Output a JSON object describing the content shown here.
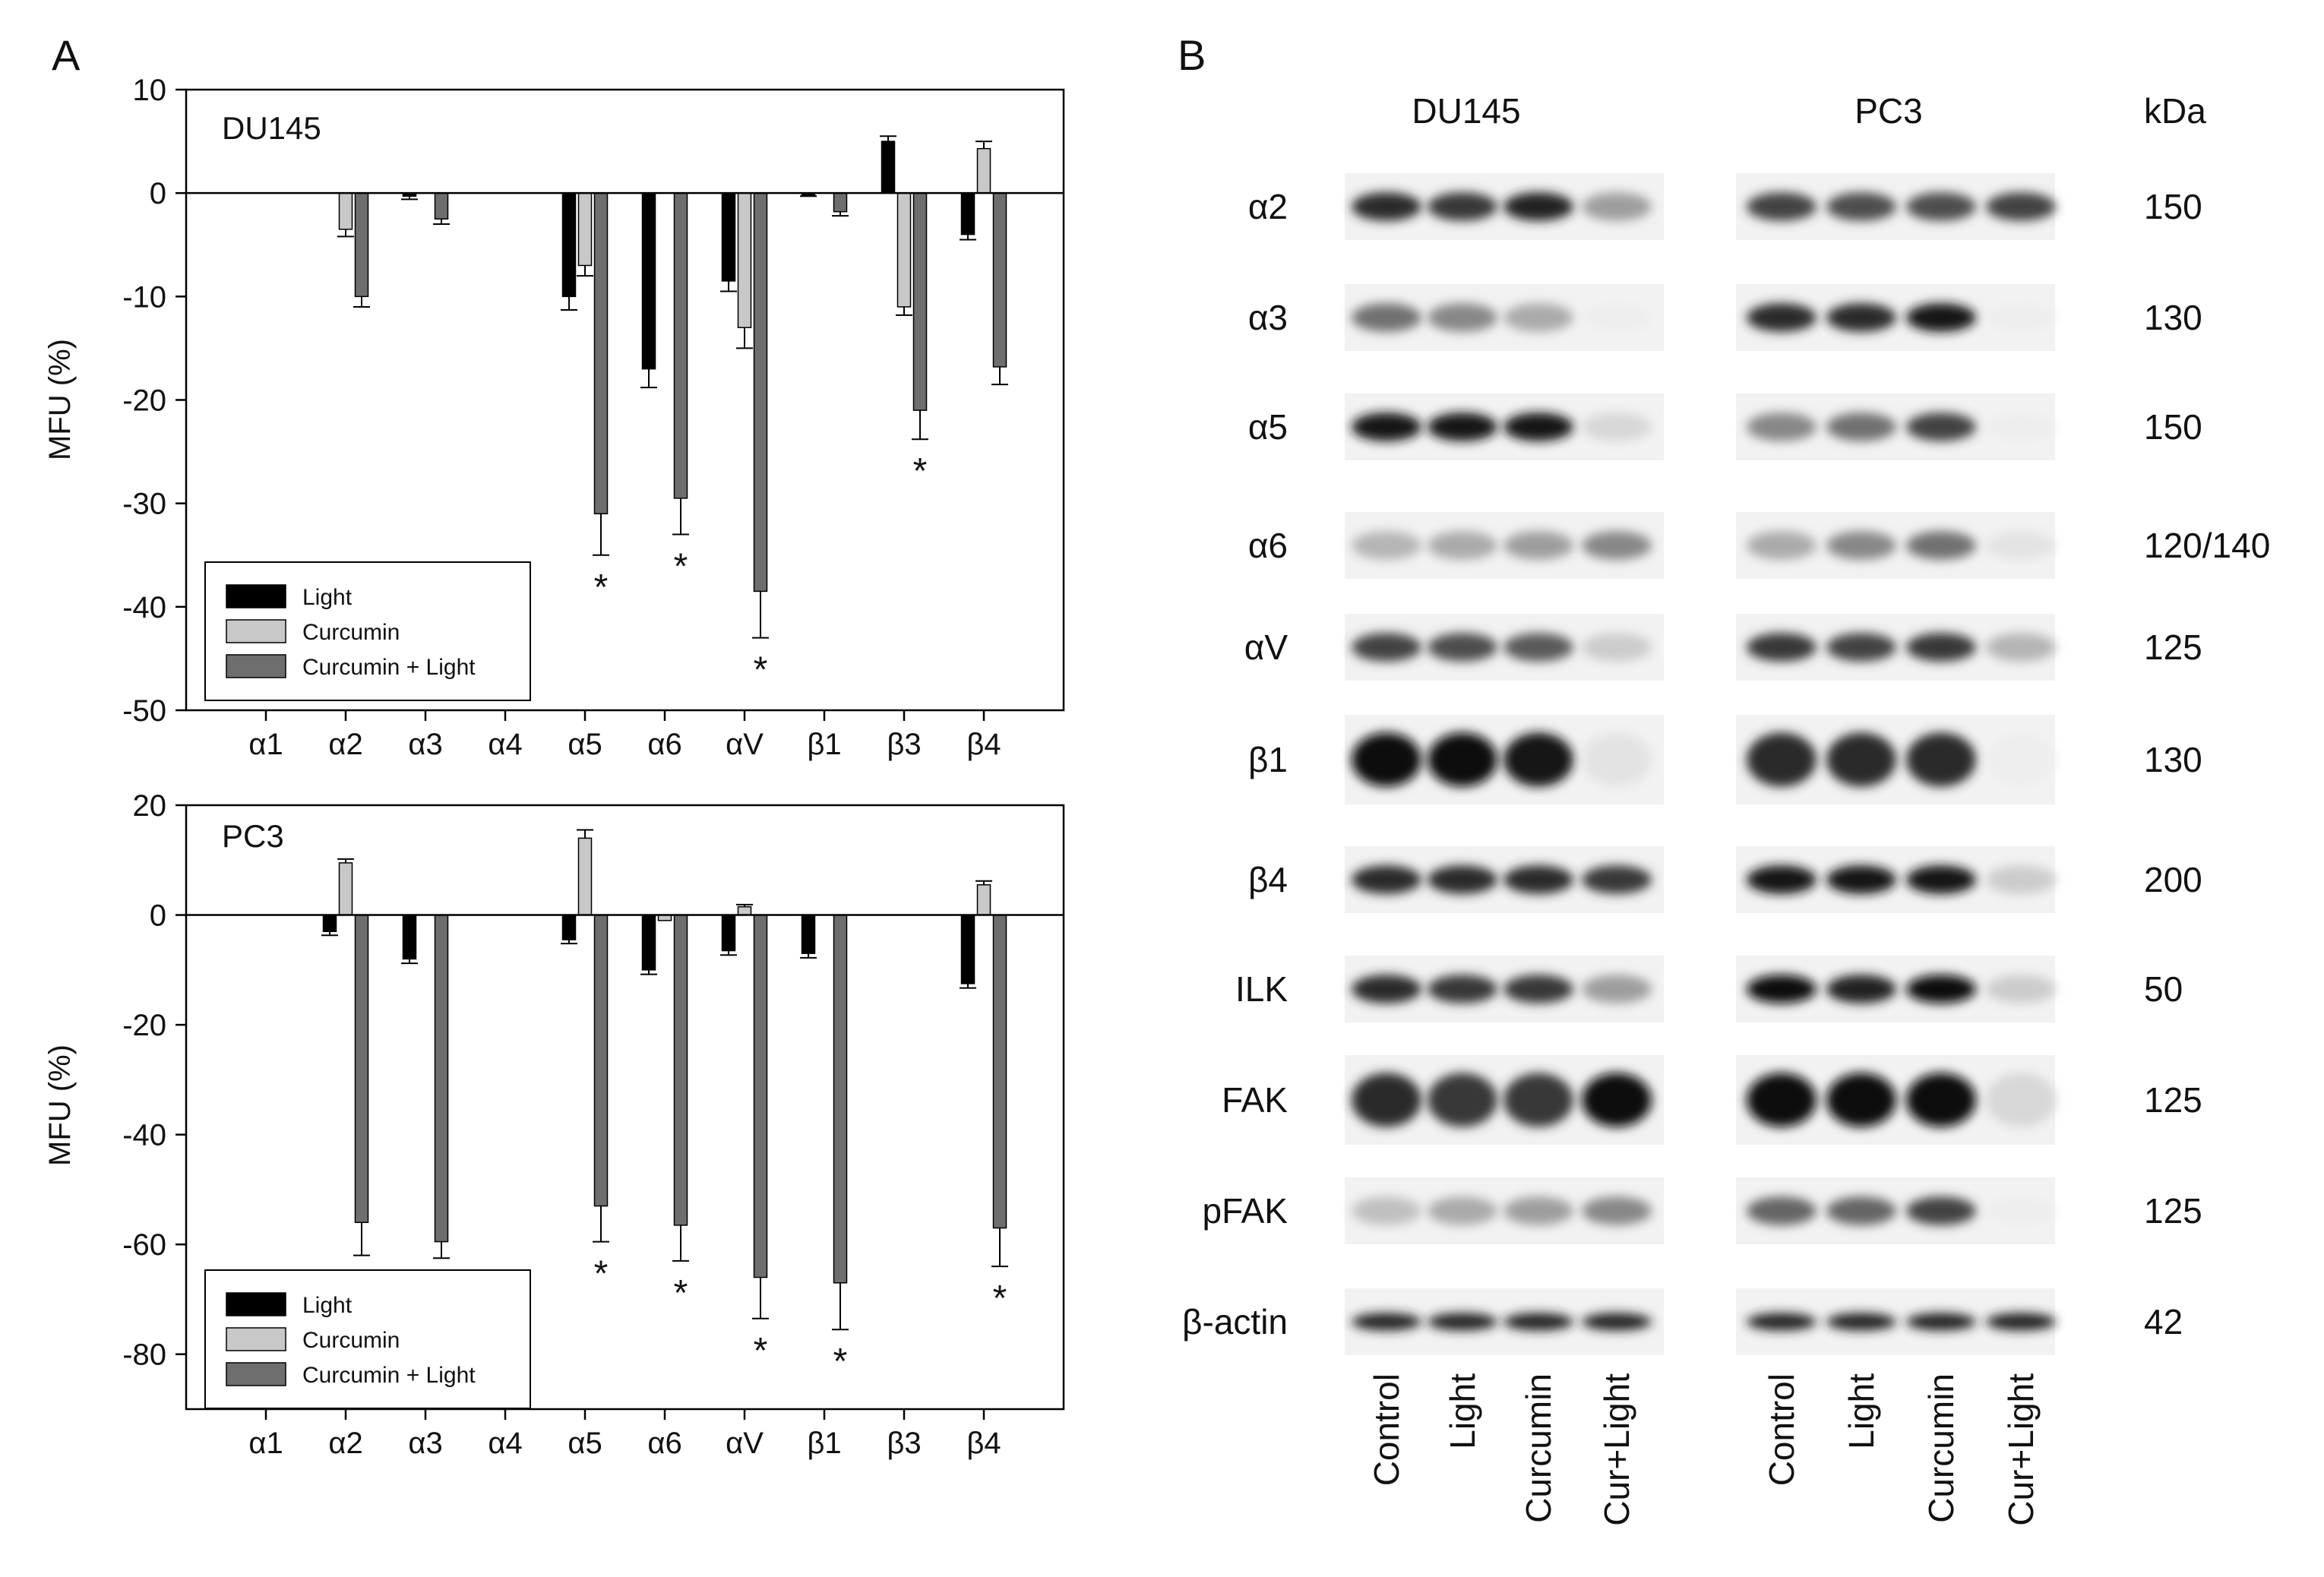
{
  "panel_labels": {
    "a": "A",
    "b": "B"
  },
  "chart_data": [
    {
      "type": "bar",
      "panel_title": "DU145",
      "ylabel": "MFU (%)",
      "ylim": [
        -50,
        10
      ],
      "yticks": [
        10,
        0,
        -10,
        -20,
        -30,
        -40,
        -50
      ],
      "categories": [
        "α1",
        "α2",
        "α3",
        "α4",
        "α5",
        "α6",
        "αV",
        "β1",
        "β3",
        "β4"
      ],
      "series": [
        {
          "name": "Light",
          "color": "#000000",
          "values": [
            0,
            0,
            -0.3,
            0,
            -10,
            -17,
            -8.5,
            -0.2,
            5,
            -4
          ],
          "errors": [
            0,
            0,
            0.3,
            0,
            1.3,
            1.8,
            1,
            0.1,
            0.5,
            0.5
          ]
        },
        {
          "name": "Curcumin",
          "color": "#c8c8c8",
          "values": [
            0,
            -3.5,
            0,
            0,
            -7,
            0,
            -13,
            0,
            -11,
            4.3
          ],
          "errors": [
            0,
            0.7,
            0,
            0,
            1,
            0,
            2,
            0,
            0.8,
            0.7
          ]
        },
        {
          "name": "Curcumin + Light",
          "color": "#6e6e6e",
          "values": [
            0,
            -10,
            -2.5,
            0,
            -31,
            -29.5,
            -38.5,
            -1.8,
            -21,
            -16.8
          ],
          "errors": [
            0,
            1,
            0.5,
            0,
            4,
            3.5,
            4.5,
            0.4,
            2.8,
            1.7
          ]
        }
      ],
      "significance": [
        {
          "category": "α5",
          "series": "Curcumin + Light",
          "label": "*"
        },
        {
          "category": "α6",
          "series": "Curcumin + Light",
          "label": "*"
        },
        {
          "category": "αV",
          "series": "Curcumin + Light",
          "label": "*"
        },
        {
          "category": "β3",
          "series": "Curcumin + Light",
          "label": "*"
        }
      ],
      "legend": {
        "position": "bottom-left"
      }
    },
    {
      "type": "bar",
      "panel_title": "PC3",
      "ylabel": "MFU (%)",
      "ylim": [
        -90,
        20
      ],
      "yticks": [
        20,
        0,
        -20,
        -40,
        -60,
        -80
      ],
      "categories": [
        "α1",
        "α2",
        "α3",
        "α4",
        "α5",
        "α6",
        "αV",
        "β1",
        "β3",
        "β4"
      ],
      "series": [
        {
          "name": "Light",
          "color": "#000000",
          "values": [
            0,
            -3,
            -8,
            0,
            -4.5,
            -10,
            -6.5,
            -7,
            0,
            -12.5
          ],
          "errors": [
            0,
            0.7,
            0.8,
            0,
            0.7,
            0.8,
            0.8,
            0.8,
            0,
            0.8
          ]
        },
        {
          "name": "Curcumin",
          "color": "#c8c8c8",
          "values": [
            0,
            9.5,
            0,
            0,
            14,
            -1,
            1.5,
            0,
            0,
            5.5
          ],
          "errors": [
            0,
            0.7,
            0,
            0,
            1.5,
            0,
            0.4,
            0,
            0,
            0.7
          ]
        },
        {
          "name": "Curcumin + Light",
          "color": "#6e6e6e",
          "values": [
            0,
            -56,
            -59.5,
            0,
            -53,
            -56.5,
            -66,
            -67,
            0,
            -57
          ],
          "errors": [
            0,
            6,
            3,
            0,
            6.5,
            6.5,
            7.5,
            8.5,
            0,
            7
          ]
        }
      ],
      "significance": [
        {
          "category": "α2",
          "series": "Curcumin + Light",
          "label": "*"
        },
        {
          "category": "α3",
          "series": "Curcumin + Light",
          "label": "*"
        },
        {
          "category": "α5",
          "series": "Curcumin + Light",
          "label": "*"
        },
        {
          "category": "α6",
          "series": "Curcumin + Light",
          "label": "*"
        },
        {
          "category": "αV",
          "series": "Curcumin + Light",
          "label": "*"
        },
        {
          "category": "β1",
          "series": "Curcumin + Light",
          "label": "*"
        },
        {
          "category": "β4",
          "series": "Curcumin + Light",
          "label": "*"
        }
      ],
      "legend": {
        "position": "bottom-left"
      }
    }
  ],
  "western_blot": {
    "cell_lines": [
      "DU145",
      "PC3"
    ],
    "kda_header": "kDa",
    "proteins": [
      {
        "name": "α2",
        "kda": "150",
        "intensity_du145": [
          0.85,
          0.8,
          0.9,
          0.35
        ],
        "intensity_pc3": [
          0.75,
          0.7,
          0.7,
          0.75
        ]
      },
      {
        "name": "α3",
        "kda": "130",
        "intensity_du145": [
          0.55,
          0.45,
          0.3,
          0
        ],
        "intensity_pc3": [
          0.85,
          0.85,
          0.95,
          0
        ]
      },
      {
        "name": "α5",
        "kda": "150",
        "intensity_du145": [
          0.95,
          0.95,
          0.95,
          0.1
        ],
        "intensity_pc3": [
          0.45,
          0.55,
          0.75,
          0
        ]
      },
      {
        "name": "α6",
        "kda": "120/140",
        "intensity_du145": [
          0.25,
          0.3,
          0.35,
          0.45
        ],
        "intensity_pc3": [
          0.3,
          0.45,
          0.55,
          0.05
        ]
      },
      {
        "name": "αV",
        "kda": "125",
        "intensity_du145": [
          0.75,
          0.7,
          0.65,
          0.15
        ],
        "intensity_pc3": [
          0.8,
          0.75,
          0.8,
          0.25
        ]
      },
      {
        "name": "β1",
        "kda": "130",
        "intensity_du145": [
          1,
          1,
          0.95,
          0.05
        ],
        "intensity_pc3": [
          0.85,
          0.85,
          0.85,
          0
        ]
      },
      {
        "name": "β4",
        "kda": "200",
        "intensity_du145": [
          0.85,
          0.85,
          0.85,
          0.8
        ],
        "intensity_pc3": [
          0.95,
          0.95,
          0.95,
          0.15
        ]
      },
      {
        "name": "ILK",
        "kda": "50",
        "intensity_du145": [
          0.85,
          0.8,
          0.8,
          0.35
        ],
        "intensity_pc3": [
          1,
          0.9,
          1,
          0.15
        ]
      },
      {
        "name": "FAK",
        "kda": "125",
        "intensity_du145": [
          0.85,
          0.8,
          0.8,
          1
        ],
        "intensity_pc3": [
          1,
          1,
          1,
          0.1
        ]
      },
      {
        "name": "pFAK",
        "kda": "125",
        "intensity_du145": [
          0.2,
          0.3,
          0.35,
          0.45
        ],
        "intensity_pc3": [
          0.6,
          0.6,
          0.75,
          0
        ]
      },
      {
        "name": "β-actin",
        "kda": "42",
        "intensity_du145": [
          0.9,
          0.9,
          0.9,
          0.9
        ],
        "intensity_pc3": [
          0.9,
          0.9,
          0.9,
          0.9
        ]
      }
    ],
    "lane_labels": [
      "Control",
      "Light",
      "Curcumin",
      "Cur+Light"
    ]
  }
}
